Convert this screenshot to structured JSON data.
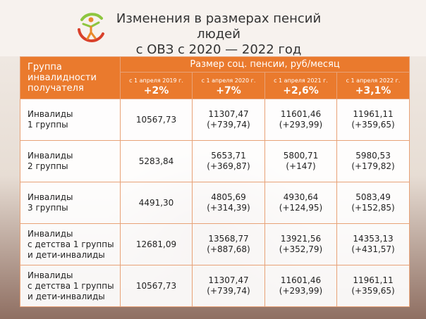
{
  "title": {
    "line1": "Изменения в размерах пенсий людей",
    "line2": "с ОВЗ с 2020 — 2022 год"
  },
  "colors": {
    "accent": "#ea7a2d",
    "logo_green": "#8dc63f",
    "logo_red": "#d9412b"
  },
  "logo_icon": "person-figure-icon",
  "table": {
    "group_header": [
      "Группа",
      "инвалидности",
      "получателя"
    ],
    "size_header": "Размер соц. пенсии, руб/месяц",
    "years": [
      {
        "date": "с 1 апреля 2019 г.",
        "pct": "+2%"
      },
      {
        "date": "с 1 апреля 2020 г.",
        "pct": "+7%"
      },
      {
        "date": "с 1 апреля 2021 г.",
        "pct": "+2,6%"
      },
      {
        "date": "с 1 апреля 2022 г.",
        "pct": "+3,1%"
      }
    ],
    "rows": [
      {
        "name": [
          "Инвалиды",
          "1 группы"
        ],
        "v2019": "10567,73",
        "v2020": [
          "11307,47",
          "(+739,74)"
        ],
        "v2021": [
          "11601,46",
          "(+293,99)"
        ],
        "v2022": [
          "11961,11",
          "(+359,65)"
        ]
      },
      {
        "name": [
          "Инвалиды",
          "2 группы"
        ],
        "v2019": "5283,84",
        "v2020": [
          "5653,71",
          "(+369,87)"
        ],
        "v2021": [
          "5800,71",
          "(+147)"
        ],
        "v2022": [
          "5980,53",
          "(+179,82)"
        ]
      },
      {
        "name": [
          "Инвалиды",
          "3 группы"
        ],
        "v2019": "4491,30",
        "v2020": [
          "4805,69",
          "(+314,39)"
        ],
        "v2021": [
          "4930,64",
          "(+124,95)"
        ],
        "v2022": [
          "5083,49",
          "(+152,85)"
        ]
      },
      {
        "name": [
          "Инвалиды",
          "с детства 1 группы",
          "и дети-инвалиды"
        ],
        "v2019": "12681,09",
        "v2020": [
          "13568,77",
          "(+887,68)"
        ],
        "v2021": [
          "13921,56",
          "(+352,79)"
        ],
        "v2022": [
          "14353,13",
          "(+431,57)"
        ]
      },
      {
        "name": [
          "Инвалиды",
          "с детства 1 группы",
          "и дети-инвалиды"
        ],
        "v2019": "10567,73",
        "v2020": [
          "11307,47",
          "(+739,74)"
        ],
        "v2021": [
          "11601,46",
          "(+293,99)"
        ],
        "v2022": [
          "11961,11",
          "(+359,65)"
        ]
      }
    ]
  }
}
